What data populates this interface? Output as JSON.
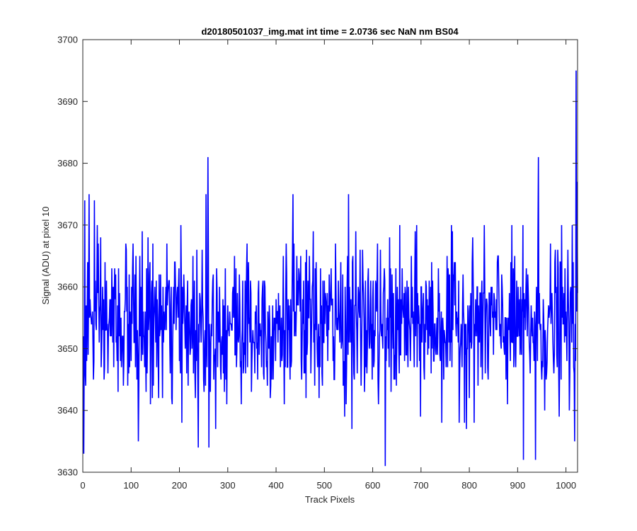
{
  "chart_data": {
    "type": "line",
    "title": "d20180501037_img.mat int time = 2.0736 sec  NaN nm BS04",
    "xlabel": "Track Pixels",
    "ylabel": "Signal (ADU) at pixel 10",
    "xlim": [
      0,
      1024
    ],
    "ylim": [
      3630,
      3700
    ],
    "x_ticks": [
      0,
      100,
      200,
      300,
      400,
      500,
      600,
      700,
      800,
      900,
      1000
    ],
    "y_ticks": [
      3630,
      3640,
      3650,
      3660,
      3670,
      3680,
      3690,
      3700
    ],
    "grid": false,
    "series": [
      {
        "color": "#0000ff",
        "y_mean": 3654,
        "y_min": 3631,
        "y_max": 3695,
        "n_points": 1024,
        "notable_points": [
          {
            "x": 1,
            "y": 3633
          },
          {
            "x": 3,
            "y": 3674
          },
          {
            "x": 12,
            "y": 3675
          },
          {
            "x": 23,
            "y": 3674
          },
          {
            "x": 114,
            "y": 3635
          },
          {
            "x": 197,
            "y": 3660
          },
          {
            "x": 238,
            "y": 3634
          },
          {
            "x": 254,
            "y": 3675
          },
          {
            "x": 258,
            "y": 3681
          },
          {
            "x": 260,
            "y": 3634
          },
          {
            "x": 434,
            "y": 3675
          },
          {
            "x": 549,
            "y": 3675
          },
          {
            "x": 625,
            "y": 3631
          },
          {
            "x": 911,
            "y": 3632
          },
          {
            "x": 936,
            "y": 3632
          },
          {
            "x": 942,
            "y": 3681
          },
          {
            "x": 1017,
            "y": 3635
          },
          {
            "x": 1020,
            "y": 3695
          },
          {
            "x": 1022,
            "y": 3677
          }
        ]
      }
    ]
  }
}
